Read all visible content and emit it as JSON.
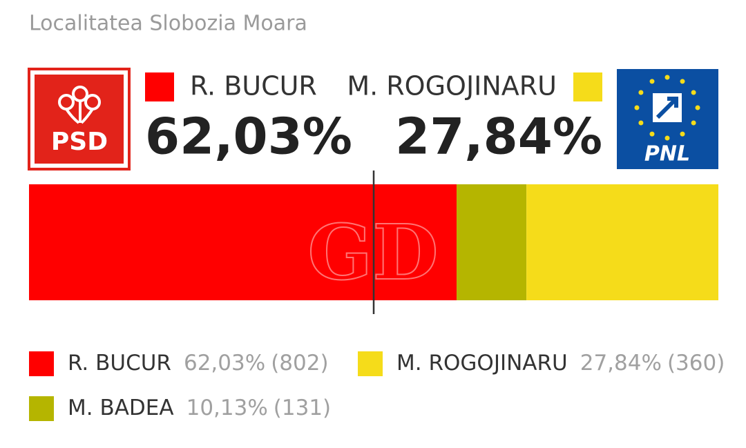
{
  "chart_data": {
    "type": "stacked-bar",
    "title": "Localitatea Slobozia Moara",
    "logos": {
      "left": "PSD",
      "right": "PNL"
    },
    "watermark": "GD",
    "xlim": [
      0,
      100
    ],
    "reference_line": 50,
    "series": [
      {
        "name": "R. BUCUR",
        "color": "#ff0000",
        "values": [
          62.03
        ],
        "value_labels": [
          "62,03%"
        ],
        "votes": [
          802
        ],
        "vote_labels": [
          "(802)"
        ]
      },
      {
        "name": "M. BADEA",
        "color": "#b5b500",
        "values": [
          10.13
        ],
        "value_labels": [
          "10,13%"
        ],
        "votes": [
          131
        ],
        "vote_labels": [
          "(131)"
        ]
      },
      {
        "name": "M. ROGOJINARU",
        "color": "#f5dc1a",
        "values": [
          27.84
        ],
        "value_labels": [
          "27,84%"
        ],
        "votes": [
          360
        ],
        "vote_labels": [
          "(360)"
        ]
      }
    ]
  }
}
